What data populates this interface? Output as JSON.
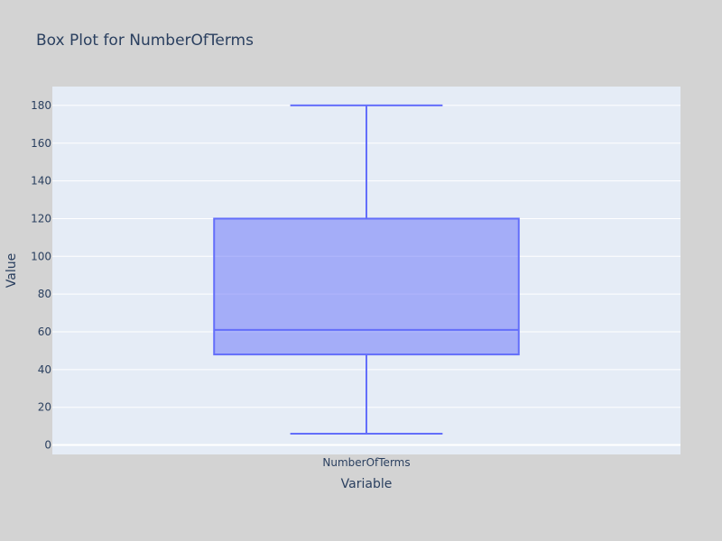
{
  "chart_data": {
    "type": "box",
    "title": "Box Plot for NumberOfTerms",
    "xlabel": "Variable",
    "ylabel": "Value",
    "categories": [
      "NumberOfTerms"
    ],
    "series": [
      {
        "category": "NumberOfTerms",
        "min": 6,
        "q1": 48,
        "median": 61,
        "q3": 120,
        "max": 180
      }
    ],
    "ylim": [
      -5,
      190
    ],
    "yticks": [
      0,
      20,
      40,
      60,
      80,
      100,
      120,
      140,
      160,
      180
    ],
    "grid": true,
    "colors": {
      "paper": "#d3d3d3",
      "plot": "#e5ecf6",
      "grid": "#ffffff",
      "box_line": "#636efa",
      "box_fill": "rgba(99,110,250,0.5)",
      "text": "#2a3f5f"
    }
  }
}
